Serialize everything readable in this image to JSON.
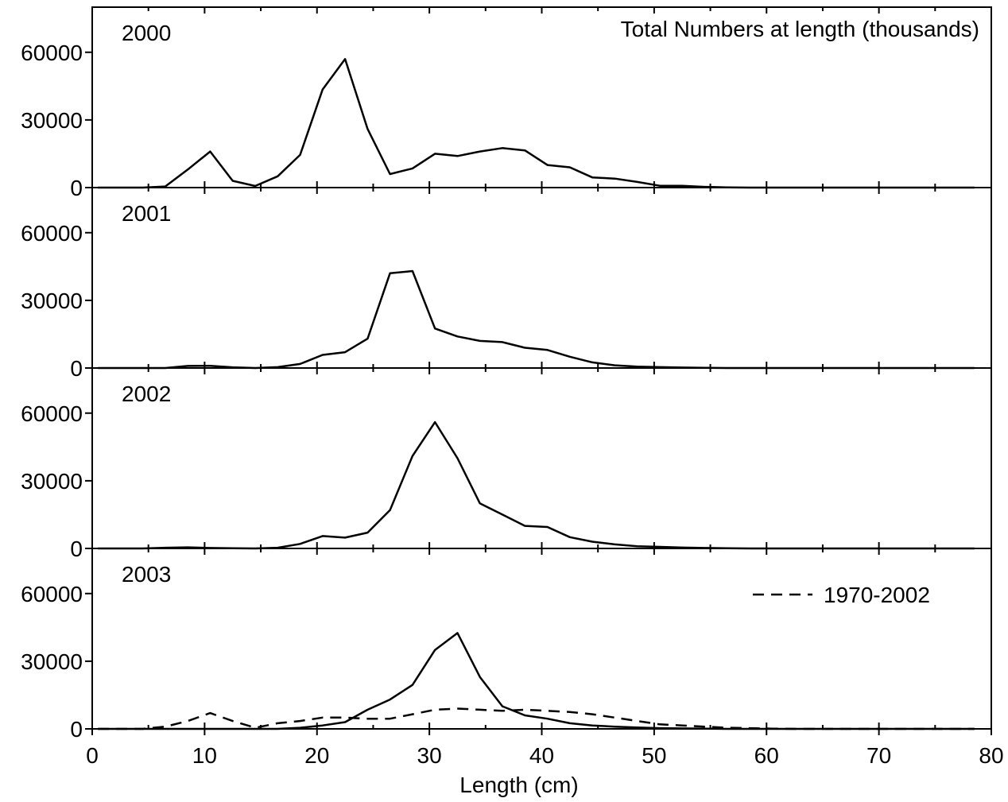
{
  "chart_data": {
    "type": "line",
    "title": "Total Numbers at length (thousands)",
    "xlabel": "Length (cm)",
    "ylabel": "",
    "xlim": [
      0,
      80
    ],
    "ylim": [
      0,
      80000
    ],
    "x_ticks": [
      "0",
      "10",
      "20",
      "30",
      "40",
      "50",
      "60",
      "70",
      "80"
    ],
    "y_ticks": [
      "0",
      "30000",
      "60000"
    ],
    "x": [
      0.5,
      2.5,
      4.5,
      6.5,
      8.5,
      10.5,
      12.5,
      14.5,
      16.5,
      18.5,
      20.5,
      22.5,
      24.5,
      26.5,
      28.5,
      30.5,
      32.5,
      34.5,
      36.5,
      38.5,
      40.5,
      42.5,
      44.5,
      46.5,
      48.5,
      50.5,
      52.5,
      54.5,
      56.5,
      58.5,
      60.5,
      62.5,
      64.5,
      66.5,
      68.5,
      70.5,
      72.5,
      74.5,
      76.5,
      78.5
    ],
    "panels": [
      {
        "label": "2000",
        "series": [
          {
            "style": "solid",
            "values": [
              0,
              0,
              0,
              500,
              8000,
              16000,
              3000,
              700,
              5000,
              14500,
              43500,
              57000,
              26000,
              6000,
              8500,
              15000,
              14000,
              16000,
              17500,
              16500,
              10000,
              9000,
              4500,
              4000,
              2500,
              800,
              800,
              300,
              100,
              0,
              0,
              0,
              0,
              0,
              0,
              0,
              0,
              0,
              0,
              0
            ]
          }
        ]
      },
      {
        "label": "2001",
        "series": [
          {
            "style": "solid",
            "values": [
              0,
              0,
              0,
              0,
              900,
              1000,
              300,
              0,
              400,
              1800,
              5800,
              7000,
              13000,
              42000,
              43000,
              17500,
              14000,
              12000,
              11500,
              9000,
              8000,
              5000,
              2500,
              1200,
              600,
              400,
              200,
              100,
              0,
              0,
              0,
              0,
              0,
              0,
              0,
              0,
              0,
              0,
              0,
              0
            ]
          }
        ]
      },
      {
        "label": "2002",
        "series": [
          {
            "style": "solid",
            "values": [
              0,
              0,
              0,
              300,
              500,
              200,
              100,
              0,
              300,
              2000,
              5500,
              4800,
              7000,
              17000,
              41000,
              56000,
              40000,
              20000,
              15000,
              10000,
              9500,
              5000,
              3000,
              1800,
              1000,
              700,
              400,
              200,
              100,
              0,
              0,
              0,
              0,
              0,
              0,
              0,
              0,
              0,
              0,
              0
            ]
          }
        ]
      },
      {
        "label": "2003",
        "legend": "1970-2002",
        "series": [
          {
            "style": "solid",
            "values": [
              0,
              0,
              0,
              0,
              0,
              0,
              0,
              0,
              0,
              500,
              1500,
              3000,
              8500,
              13000,
              19500,
              35000,
              42500,
              23000,
              10000,
              6000,
              4500,
              2500,
              1500,
              1000,
              600,
              300,
              200,
              100,
              0,
              0,
              0,
              0,
              0,
              0,
              0,
              0,
              0,
              0,
              0,
              0
            ]
          },
          {
            "style": "dashed",
            "name": "1970-2002",
            "values": [
              0,
              0,
              0,
              1000,
              3500,
              7000,
              3500,
              500,
              2500,
              3500,
              5000,
              5000,
              4500,
              4500,
              6500,
              8500,
              9000,
              8500,
              8000,
              8500,
              8000,
              7500,
              6500,
              5000,
              3500,
              2000,
              1500,
              1000,
              500,
              300,
              100,
              0,
              0,
              0,
              0,
              0,
              0,
              0,
              0,
              0
            ]
          }
        ]
      }
    ]
  }
}
